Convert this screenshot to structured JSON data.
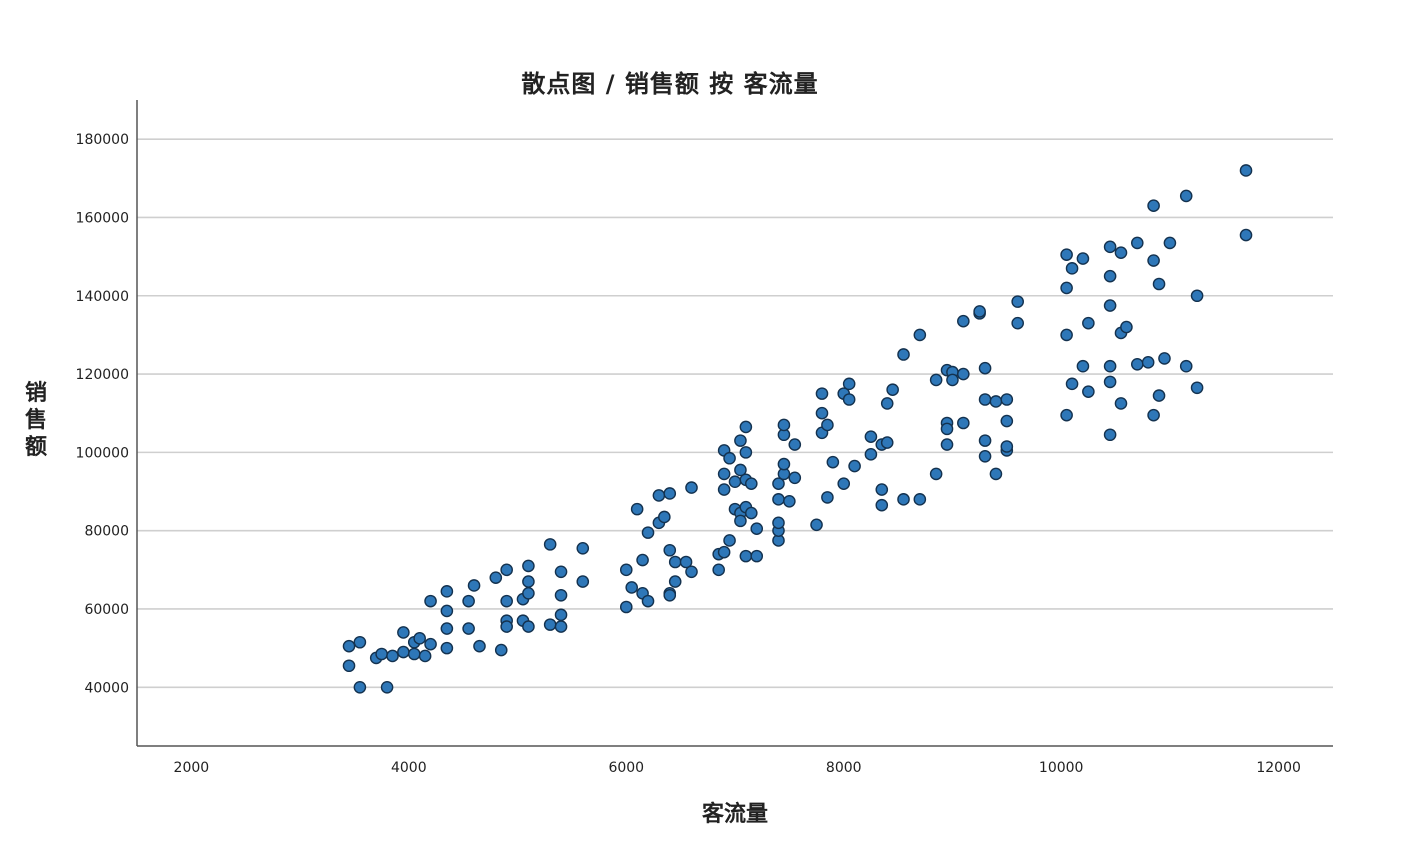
{
  "chart_data": {
    "type": "scatter",
    "title": "散点图 / 销售额 按 客流量",
    "xlabel": "客流量",
    "ylabel": "销售额",
    "xlim": [
      1500,
      12500
    ],
    "ylim": [
      25000,
      190000
    ],
    "xticks": [
      "2000",
      "4000",
      "6000",
      "8000",
      "10000",
      "12000"
    ],
    "yticks": [
      "40000",
      "60000",
      "80000",
      "100000",
      "120000",
      "140000",
      "160000",
      "180000"
    ],
    "grid": "horizontal",
    "marker_color": "#2e77b8",
    "points": [
      [
        3450,
        50500
      ],
      [
        3450,
        45500
      ],
      [
        3550,
        51500
      ],
      [
        3550,
        40000
      ],
      [
        3700,
        47500
      ],
      [
        3750,
        48500
      ],
      [
        3800,
        40000
      ],
      [
        3850,
        48000
      ],
      [
        3950,
        49000
      ],
      [
        3950,
        54000
      ],
      [
        4050,
        48500
      ],
      [
        4050,
        51500
      ],
      [
        4100,
        52500
      ],
      [
        4150,
        48000
      ],
      [
        4200,
        51000
      ],
      [
        4200,
        62000
      ],
      [
        4350,
        55000
      ],
      [
        4350,
        59500
      ],
      [
        4350,
        64500
      ],
      [
        4350,
        50000
      ],
      [
        4550,
        62000
      ],
      [
        4550,
        55000
      ],
      [
        4600,
        66000
      ],
      [
        4650,
        50500
      ],
      [
        4800,
        68000
      ],
      [
        4850,
        49500
      ],
      [
        4900,
        70000
      ],
      [
        4900,
        62000
      ],
      [
        4900,
        57000
      ],
      [
        4900,
        55500
      ],
      [
        5050,
        62500
      ],
      [
        5050,
        57000
      ],
      [
        5100,
        71000
      ],
      [
        5100,
        67000
      ],
      [
        5100,
        64000
      ],
      [
        5100,
        55500
      ],
      [
        5300,
        56000
      ],
      [
        5300,
        76500
      ],
      [
        5400,
        69500
      ],
      [
        5400,
        63500
      ],
      [
        5400,
        58500
      ],
      [
        5400,
        55500
      ],
      [
        5600,
        75500
      ],
      [
        5600,
        67000
      ],
      [
        6000,
        70000
      ],
      [
        6000,
        60500
      ],
      [
        6050,
        65500
      ],
      [
        6100,
        85500
      ],
      [
        6150,
        72500
      ],
      [
        6150,
        64000
      ],
      [
        6200,
        62000
      ],
      [
        6200,
        79500
      ],
      [
        6300,
        89000
      ],
      [
        6300,
        82000
      ],
      [
        6350,
        83500
      ],
      [
        6400,
        89500
      ],
      [
        6400,
        75000
      ],
      [
        6400,
        64000
      ],
      [
        6400,
        63500
      ],
      [
        6450,
        72000
      ],
      [
        6450,
        67000
      ],
      [
        6550,
        72000
      ],
      [
        6600,
        69500
      ],
      [
        6600,
        91000
      ],
      [
        6850,
        70000
      ],
      [
        6850,
        74000
      ],
      [
        6900,
        74500
      ],
      [
        6900,
        100500
      ],
      [
        6900,
        94500
      ],
      [
        6900,
        90500
      ],
      [
        6950,
        98500
      ],
      [
        6950,
        77500
      ],
      [
        7000,
        92500
      ],
      [
        7000,
        85500
      ],
      [
        7050,
        103000
      ],
      [
        7050,
        95500
      ],
      [
        7050,
        84500
      ],
      [
        7050,
        82500
      ],
      [
        7100,
        106500
      ],
      [
        7100,
        100000
      ],
      [
        7100,
        93000
      ],
      [
        7100,
        86000
      ],
      [
        7100,
        73500
      ],
      [
        7150,
        92000
      ],
      [
        7150,
        84500
      ],
      [
        7200,
        80500
      ],
      [
        7200,
        73500
      ],
      [
        7400,
        77500
      ],
      [
        7400,
        80000
      ],
      [
        7400,
        82000
      ],
      [
        7400,
        88000
      ],
      [
        7400,
        92000
      ],
      [
        7450,
        94500
      ],
      [
        7450,
        97000
      ],
      [
        7450,
        104500
      ],
      [
        7450,
        107000
      ],
      [
        7500,
        87500
      ],
      [
        7550,
        102000
      ],
      [
        7550,
        93500
      ],
      [
        7750,
        81500
      ],
      [
        7800,
        115000
      ],
      [
        7800,
        110000
      ],
      [
        7800,
        105000
      ],
      [
        7850,
        88500
      ],
      [
        7850,
        107000
      ],
      [
        7900,
        97500
      ],
      [
        8000,
        92000
      ],
      [
        8000,
        115000
      ],
      [
        8050,
        117500
      ],
      [
        8050,
        113500
      ],
      [
        8100,
        96500
      ],
      [
        8250,
        104000
      ],
      [
        8250,
        99500
      ],
      [
        8350,
        90500
      ],
      [
        8350,
        86500
      ],
      [
        8350,
        102000
      ],
      [
        8400,
        112500
      ],
      [
        8400,
        102500
      ],
      [
        8450,
        116000
      ],
      [
        8550,
        88000
      ],
      [
        8550,
        125000
      ],
      [
        8700,
        88000
      ],
      [
        8700,
        130000
      ],
      [
        8850,
        118500
      ],
      [
        8850,
        94500
      ],
      [
        8950,
        121000
      ],
      [
        8950,
        107500
      ],
      [
        8950,
        106000
      ],
      [
        8950,
        102000
      ],
      [
        9000,
        120500
      ],
      [
        9000,
        118500
      ],
      [
        9100,
        120000
      ],
      [
        9100,
        107500
      ],
      [
        9100,
        133500
      ],
      [
        9250,
        135500
      ],
      [
        9250,
        136000
      ],
      [
        9300,
        121500
      ],
      [
        9300,
        113500
      ],
      [
        9300,
        103000
      ],
      [
        9300,
        99000
      ],
      [
        9400,
        94500
      ],
      [
        9400,
        113000
      ],
      [
        9500,
        113500
      ],
      [
        9500,
        108000
      ],
      [
        9500,
        100500
      ],
      [
        9500,
        101500
      ],
      [
        9600,
        138500
      ],
      [
        9600,
        133000
      ],
      [
        10050,
        150500
      ],
      [
        10050,
        142000
      ],
      [
        10050,
        130000
      ],
      [
        10050,
        109500
      ],
      [
        10100,
        147000
      ],
      [
        10100,
        117500
      ],
      [
        10200,
        149500
      ],
      [
        10200,
        122000
      ],
      [
        10250,
        133000
      ],
      [
        10250,
        115500
      ],
      [
        10450,
        152500
      ],
      [
        10450,
        145000
      ],
      [
        10450,
        137500
      ],
      [
        10450,
        122000
      ],
      [
        10450,
        118000
      ],
      [
        10450,
        104500
      ],
      [
        10550,
        151000
      ],
      [
        10550,
        130500
      ],
      [
        10550,
        112500
      ],
      [
        10600,
        132000
      ],
      [
        10700,
        153500
      ],
      [
        10700,
        122500
      ],
      [
        10800,
        123000
      ],
      [
        10850,
        163000
      ],
      [
        10850,
        149000
      ],
      [
        10850,
        109500
      ],
      [
        10900,
        143000
      ],
      [
        10900,
        114500
      ],
      [
        10950,
        124000
      ],
      [
        11000,
        153500
      ],
      [
        11150,
        165500
      ],
      [
        11150,
        122000
      ],
      [
        11250,
        140000
      ],
      [
        11250,
        116500
      ],
      [
        11700,
        172000
      ],
      [
        11700,
        155500
      ]
    ]
  }
}
